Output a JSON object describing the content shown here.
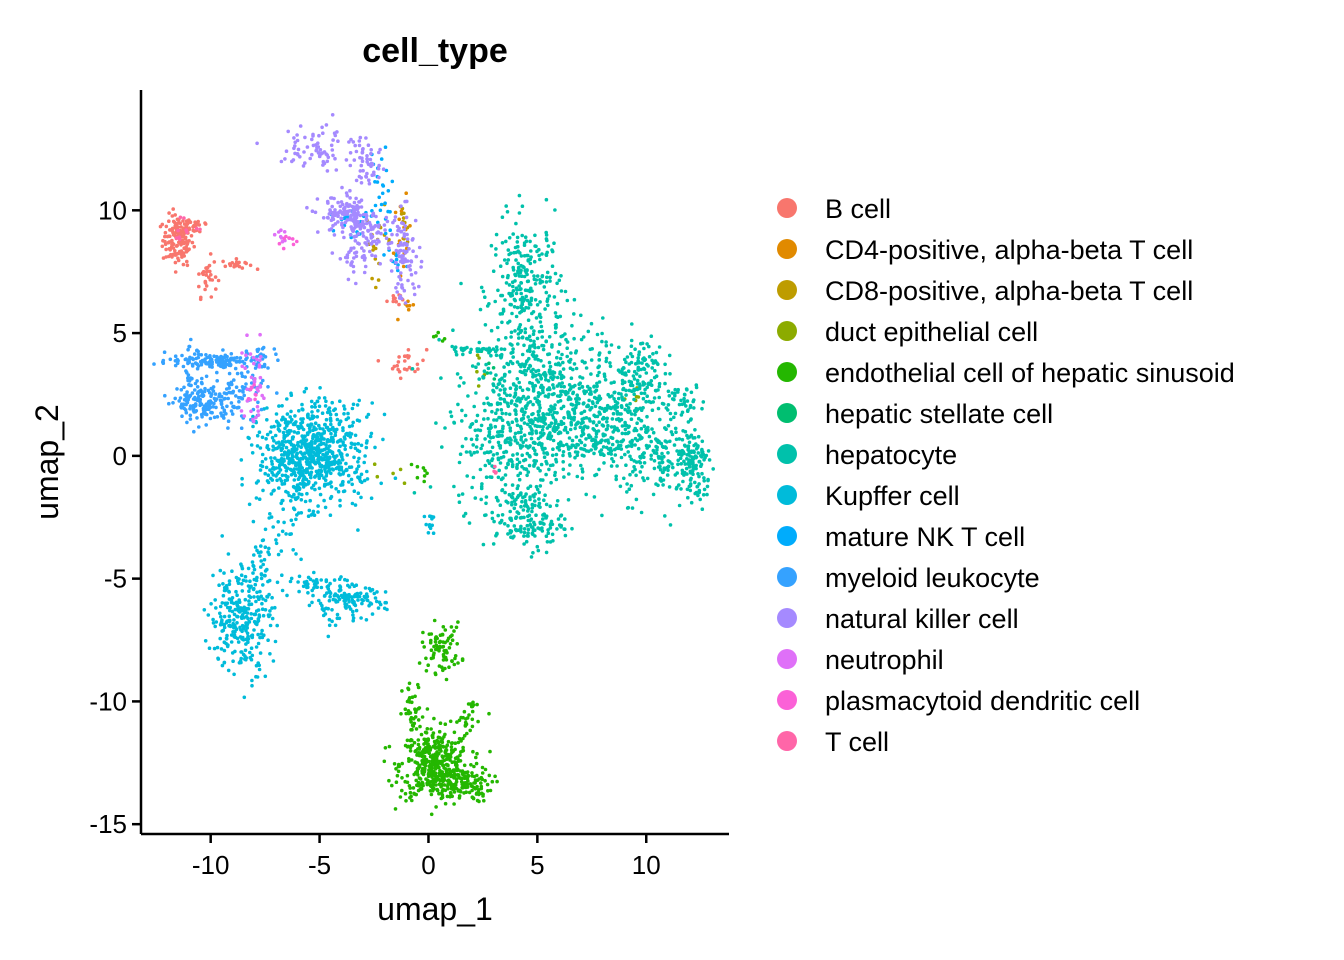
{
  "chart_data": {
    "type": "scatter",
    "title": "cell_type",
    "xlabel": "umap_1",
    "ylabel": "umap_2",
    "xlim": [
      -13.2,
      13.8
    ],
    "ylim": [
      -15.4,
      14.9
    ],
    "xticks": [
      -10,
      -5,
      0,
      5,
      10
    ],
    "yticks": [
      -15,
      -10,
      -5,
      0,
      5,
      10
    ],
    "xtick_labels": [
      "-10",
      "-5",
      "0",
      "5",
      "10"
    ],
    "ytick_labels": [
      "-15",
      "-10",
      "-5",
      "0",
      "5",
      "10"
    ],
    "legend_position": "right",
    "grid": false,
    "series": [
      {
        "name": "B cell",
        "color": "#F8766D",
        "clusters": [
          {
            "cx": -11.5,
            "cy": 8.8,
            "sx": 0.35,
            "sy": 0.5,
            "n": 140
          },
          {
            "cx": -10.7,
            "cy": 9.4,
            "sx": 0.4,
            "sy": 0.2,
            "n": 25
          },
          {
            "cx": -10.2,
            "cy": 7.3,
            "sx": 0.25,
            "sy": 0.4,
            "n": 30
          },
          {
            "cx": -8.8,
            "cy": 7.8,
            "sx": 0.35,
            "sy": 0.1,
            "n": 20
          },
          {
            "cx": -1.6,
            "cy": 6.4,
            "sx": 0.15,
            "sy": 0.15,
            "n": 10
          },
          {
            "cx": -1.0,
            "cy": 3.8,
            "sx": 0.45,
            "sy": 0.3,
            "n": 25
          }
        ]
      },
      {
        "name": "CD4-positive, alpha-beta T cell",
        "color": "#E18A00",
        "clusters": [
          {
            "cx": -1.2,
            "cy": 8.6,
            "sx": 0.2,
            "sy": 0.9,
            "n": 18
          },
          {
            "cx": -0.9,
            "cy": 6.2,
            "sx": 0.15,
            "sy": 0.2,
            "n": 6
          }
        ]
      },
      {
        "name": "CD8-positive, alpha-beta T cell",
        "color": "#BE9C00",
        "clusters": [
          {
            "cx": -2.3,
            "cy": 8.7,
            "sx": 0.3,
            "sy": 0.7,
            "n": 18
          },
          {
            "cx": -1.1,
            "cy": 9.3,
            "sx": 0.15,
            "sy": 0.4,
            "n": 10
          }
        ]
      },
      {
        "name": "duct epithelial cell",
        "color": "#8CAB00",
        "clusters": [
          {
            "cx": 9.5,
            "cy": 2.4,
            "sx": 0.3,
            "sy": 0.3,
            "n": 6
          },
          {
            "cx": 2.2,
            "cy": 3.4,
            "sx": 0.2,
            "sy": 0.3,
            "n": 5
          },
          {
            "cx": -2.0,
            "cy": -0.6,
            "sx": 0.4,
            "sy": 0.2,
            "n": 5
          }
        ]
      },
      {
        "name": "endothelial cell of hepatic sinusoid",
        "color": "#24B700",
        "clusters": [
          {
            "cx": 0.3,
            "cy": -12.6,
            "sx": 0.8,
            "sy": 0.7,
            "n": 420
          },
          {
            "cx": 1.5,
            "cy": -13.4,
            "sx": 0.7,
            "sy": 0.35,
            "n": 120
          },
          {
            "cx": -0.7,
            "cy": -10.6,
            "sx": 0.25,
            "sy": 0.7,
            "n": 40
          },
          {
            "cx": 0.6,
            "cy": -7.8,
            "sx": 0.45,
            "sy": 0.5,
            "n": 80
          },
          {
            "cx": 1.6,
            "cy": -10.8,
            "sx": 0.45,
            "sy": 0.25,
            "n": 20
          },
          {
            "cx": 2.1,
            "cy": -10.1,
            "sx": 0.15,
            "sy": 0.1,
            "n": 8
          },
          {
            "cx": -0.3,
            "cy": -0.8,
            "sx": 0.3,
            "sy": 0.2,
            "n": 8
          },
          {
            "cx": 0.4,
            "cy": 4.7,
            "sx": 0.2,
            "sy": 0.2,
            "n": 5
          }
        ]
      },
      {
        "name": "hepatic stellate cell",
        "color": "#00BE70",
        "clusters": [
          {
            "cx": 2.5,
            "cy": 3.6,
            "sx": 0.3,
            "sy": 0.4,
            "n": 6
          }
        ]
      },
      {
        "name": "hepatocyte",
        "color": "#00C1AB",
        "clusters": [
          {
            "cx": 4.5,
            "cy": 6.8,
            "sx": 0.8,
            "sy": 1.4,
            "n": 260
          },
          {
            "cx": 5.0,
            "cy": 3.2,
            "sx": 1.5,
            "sy": 1.2,
            "n": 320
          },
          {
            "cx": 4.0,
            "cy": 0.6,
            "sx": 1.4,
            "sy": 1.4,
            "n": 380
          },
          {
            "cx": 4.6,
            "cy": -2.6,
            "sx": 0.8,
            "sy": 0.6,
            "n": 150
          },
          {
            "cx": 7.5,
            "cy": 1.4,
            "sx": 1.3,
            "sy": 1.0,
            "n": 360
          },
          {
            "cx": 9.6,
            "cy": 3.4,
            "sx": 0.6,
            "sy": 0.8,
            "n": 130
          },
          {
            "cx": 10.5,
            "cy": 0.0,
            "sx": 1.0,
            "sy": 0.9,
            "n": 180
          },
          {
            "cx": 12.2,
            "cy": -0.6,
            "sx": 0.4,
            "sy": 0.8,
            "n": 110
          },
          {
            "cx": 2.3,
            "cy": 4.3,
            "sx": 0.7,
            "sy": 0.12,
            "n": 35
          },
          {
            "cx": 11.5,
            "cy": 2.3,
            "sx": 0.6,
            "sy": 0.3,
            "n": 40
          }
        ]
      },
      {
        "name": "Kupffer cell",
        "color": "#00BBDA",
        "clusters": [
          {
            "cx": -5.8,
            "cy": 0.0,
            "sx": 1.0,
            "sy": 1.0,
            "n": 620
          },
          {
            "cx": -4.0,
            "cy": 0.3,
            "sx": 0.8,
            "sy": 1.0,
            "n": 160
          },
          {
            "cx": -8.6,
            "cy": -6.6,
            "sx": 0.7,
            "sy": 1.1,
            "n": 280
          },
          {
            "cx": -7.7,
            "cy": -4.5,
            "sx": 0.3,
            "sy": 0.7,
            "n": 40
          },
          {
            "cx": -3.8,
            "cy": -5.9,
            "sx": 0.9,
            "sy": 0.3,
            "n": 120
          },
          {
            "cx": -5.2,
            "cy": -5.2,
            "sx": 0.8,
            "sy": 0.2,
            "n": 40
          },
          {
            "cx": -6.6,
            "cy": -3.2,
            "sx": 0.4,
            "sy": 0.5,
            "n": 20
          },
          {
            "cx": 0.1,
            "cy": -2.7,
            "sx": 0.12,
            "sy": 0.3,
            "n": 12
          },
          {
            "cx": -4.3,
            "cy": -6.8,
            "sx": 0.4,
            "sy": 0.3,
            "n": 10
          }
        ]
      },
      {
        "name": "mature NK T cell",
        "color": "#00ACFC",
        "clusters": [
          {
            "cx": -2.2,
            "cy": 10.8,
            "sx": 0.4,
            "sy": 1.0,
            "n": 30
          },
          {
            "cx": -3.5,
            "cy": 9.4,
            "sx": 0.5,
            "sy": 0.5,
            "n": 20
          },
          {
            "cx": -1.3,
            "cy": 8.0,
            "sx": 0.3,
            "sy": 0.4,
            "n": 10
          }
        ]
      },
      {
        "name": "myeloid leukocyte",
        "color": "#35A2FF",
        "clusters": [
          {
            "cx": -9.8,
            "cy": 3.9,
            "sx": 1.1,
            "sy": 0.15,
            "n": 120
          },
          {
            "cx": -10.3,
            "cy": 2.1,
            "sx": 0.6,
            "sy": 0.4,
            "n": 140
          },
          {
            "cx": -8.6,
            "cy": 2.6,
            "sx": 0.6,
            "sy": 0.6,
            "n": 80
          },
          {
            "cx": -10.9,
            "cy": 3.0,
            "sx": 0.2,
            "sy": 0.7,
            "n": 40
          },
          {
            "cx": -7.6,
            "cy": 4.1,
            "sx": 0.3,
            "sy": 0.25,
            "n": 20
          }
        ]
      },
      {
        "name": "natural killer cell",
        "color": "#A58AFF",
        "clusters": [
          {
            "cx": -3.8,
            "cy": 9.8,
            "sx": 0.6,
            "sy": 0.4,
            "n": 120
          },
          {
            "cx": -2.9,
            "cy": 9.0,
            "sx": 0.5,
            "sy": 0.5,
            "n": 80
          },
          {
            "cx": -1.1,
            "cy": 8.2,
            "sx": 0.35,
            "sy": 0.9,
            "n": 90
          },
          {
            "cx": -4.8,
            "cy": 12.6,
            "sx": 1.0,
            "sy": 0.5,
            "n": 80
          },
          {
            "cx": -2.8,
            "cy": 11.8,
            "sx": 0.4,
            "sy": 0.4,
            "n": 40
          },
          {
            "cx": -3.2,
            "cy": 7.9,
            "sx": 0.4,
            "sy": 0.3,
            "n": 25
          }
        ]
      },
      {
        "name": "neutrophil",
        "color": "#DF70F8",
        "clusters": [
          {
            "cx": -8.0,
            "cy": 2.7,
            "sx": 0.3,
            "sy": 0.9,
            "n": 40
          },
          {
            "cx": -6.8,
            "cy": 8.9,
            "sx": 0.4,
            "sy": 0.2,
            "n": 10
          }
        ]
      },
      {
        "name": "plasmacytoid dendritic cell",
        "color": "#FB61D7",
        "clusters": [
          {
            "cx": -6.4,
            "cy": 8.8,
            "sx": 0.3,
            "sy": 0.15,
            "n": 8
          },
          {
            "cx": -8.0,
            "cy": 2.3,
            "sx": 0.2,
            "sy": 0.4,
            "n": 6
          }
        ]
      },
      {
        "name": "T cell",
        "color": "#FF66A8",
        "clusters": [
          {
            "cx": -11.2,
            "cy": 9.2,
            "sx": 0.4,
            "sy": 0.2,
            "n": 10
          },
          {
            "cx": 3.1,
            "cy": -0.6,
            "sx": 0.1,
            "sy": 0.1,
            "n": 4
          }
        ]
      }
    ]
  }
}
